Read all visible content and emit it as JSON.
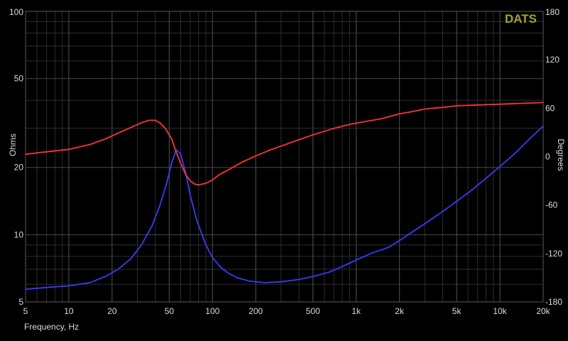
{
  "chart_data": {
    "type": "line",
    "brand": "DATS",
    "xlabel": "Frequency, Hz",
    "ylabel_left": "Ohms",
    "ylabel_right": "Degrees",
    "x_scale": "log",
    "xlim": [
      5,
      20000
    ],
    "ylim_left": [
      5,
      100
    ],
    "ylim_right": [
      -180,
      180
    ],
    "y_left_scale": "log",
    "grid": true,
    "x_ticks": [
      {
        "v": 5,
        "label": "5"
      },
      {
        "v": 10,
        "label": "10"
      },
      {
        "v": 20,
        "label": "20"
      },
      {
        "v": 50,
        "label": "50"
      },
      {
        "v": 100,
        "label": "100"
      },
      {
        "v": 200,
        "label": "200"
      },
      {
        "v": 500,
        "label": "500"
      },
      {
        "v": 1000,
        "label": "1k"
      },
      {
        "v": 2000,
        "label": "2k"
      },
      {
        "v": 5000,
        "label": "5k"
      },
      {
        "v": 10000,
        "label": "10k"
      },
      {
        "v": 20000,
        "label": "20k"
      }
    ],
    "y_left_ticks": [
      {
        "v": 5,
        "label": "5"
      },
      {
        "v": 10,
        "label": "10"
      },
      {
        "v": 20,
        "label": "20"
      },
      {
        "v": 50,
        "label": "50"
      },
      {
        "v": 100,
        "label": "100"
      }
    ],
    "y_right_ticks": [
      {
        "v": -180,
        "label": "-180"
      },
      {
        "v": -120,
        "label": "-120"
      },
      {
        "v": -60,
        "label": "-60"
      },
      {
        "v": 0,
        "label": "0"
      },
      {
        "v": 60,
        "label": "60"
      },
      {
        "v": 120,
        "label": "120"
      },
      {
        "v": 180,
        "label": "180"
      }
    ],
    "colors": {
      "impedance": "#3a3aff",
      "phase": "#ff3333",
      "brand": "#a6a61c",
      "grid": "#4a4a4a",
      "background": "#000000"
    },
    "series": [
      {
        "key": "impedance",
        "axis": "left",
        "x": [
          5,
          7,
          10,
          14,
          18,
          22,
          27,
          32,
          38,
          43,
          48,
          52,
          56,
          60,
          65,
          70,
          78,
          90,
          100,
          115,
          130,
          150,
          180,
          230,
          300,
          400,
          500,
          650,
          800,
          1000,
          1300,
          1700,
          2200,
          3000,
          4000,
          5000,
          6500,
          8000,
          10000,
          13000,
          16000,
          20000
        ],
        "y": [
          5.7,
          5.8,
          5.9,
          6.1,
          6.5,
          7.0,
          7.8,
          9.0,
          11.0,
          13.5,
          17.0,
          21.0,
          24.0,
          23.0,
          19.0,
          15.0,
          11.5,
          9.0,
          7.9,
          7.1,
          6.7,
          6.4,
          6.2,
          6.1,
          6.15,
          6.3,
          6.5,
          6.8,
          7.2,
          7.7,
          8.3,
          8.8,
          9.8,
          11.2,
          12.7,
          14.1,
          16.0,
          17.9,
          20.2,
          23.4,
          26.8,
          30.6
        ]
      },
      {
        "key": "phase",
        "axis": "right",
        "x": [
          5,
          7,
          10,
          14,
          18,
          22,
          27,
          32,
          36,
          40,
          43,
          47,
          52,
          56,
          60,
          65,
          70,
          75,
          80,
          90,
          100,
          110,
          130,
          160,
          200,
          250,
          300,
          400,
          500,
          700,
          900,
          1200,
          1500,
          2000,
          2500,
          3000,
          4000,
          5000,
          7000,
          10000,
          14000,
          20000
        ],
        "y": [
          3,
          6,
          9,
          15,
          22,
          29,
          36,
          42,
          45,
          45,
          42,
          35,
          22,
          5,
          -8,
          -22,
          -30,
          -34,
          -35,
          -33,
          -29,
          -23,
          -16,
          -7,
          1,
          8,
          13,
          21,
          27,
          35,
          40,
          44,
          47,
          53,
          56,
          59,
          61,
          63,
          64,
          65,
          66,
          67
        ]
      }
    ]
  }
}
